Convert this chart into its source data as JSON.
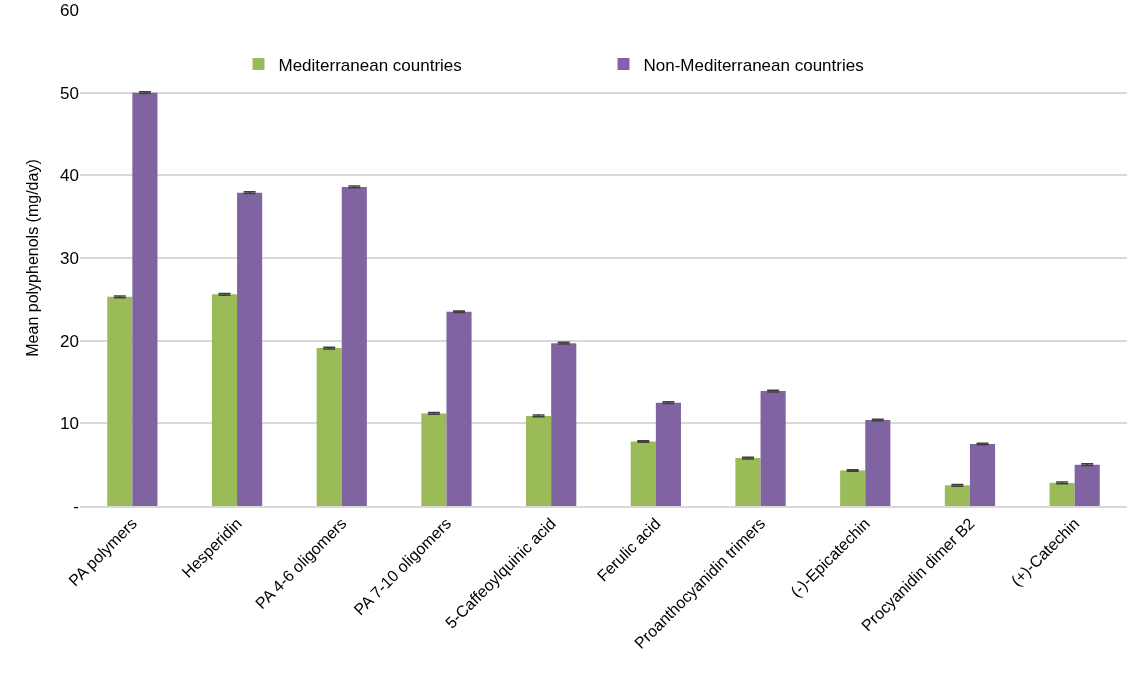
{
  "chart_data": {
    "type": "bar",
    "ylabel": "Mean polyphenols (mg/day)",
    "categories": [
      "PA polymers",
      "Hesperidin",
      "PA 4-6 oligomers",
      "PA 7-10 oligomers",
      "5-Caffeoylquinic acid",
      "Ferulic acid",
      "Proanthocyanidin trimers",
      "(-)-Epicatechin",
      "Procyanidin dimer B2",
      "(+)-Catechin"
    ],
    "series": [
      {
        "name": "Mediterranean countries",
        "color": "#9bbb59",
        "values": [
          25.3,
          25.6,
          19.1,
          11.2,
          10.9,
          7.8,
          5.8,
          4.3,
          2.5,
          2.8
        ],
        "errors": [
          0.1,
          0.1,
          0.1,
          0.1,
          0.1,
          0.1,
          0.1,
          0.1,
          0.1,
          0.1
        ]
      },
      {
        "name": "Non-Mediterranean countries",
        "color": "#8064a2",
        "values": [
          50.0,
          37.9,
          38.6,
          23.5,
          19.7,
          12.5,
          13.9,
          10.4,
          7.5,
          5.0
        ],
        "errors": [
          0.1,
          0.1,
          0.1,
          0.1,
          0.1,
          0.1,
          0.1,
          0.1,
          0.1,
          0.1
        ]
      }
    ],
    "ylim": [
      0,
      60
    ],
    "yticks": [
      {
        "value": 0,
        "label": "-"
      },
      10,
      20,
      30,
      40,
      50,
      60
    ],
    "grid": "y",
    "legend": "top"
  }
}
